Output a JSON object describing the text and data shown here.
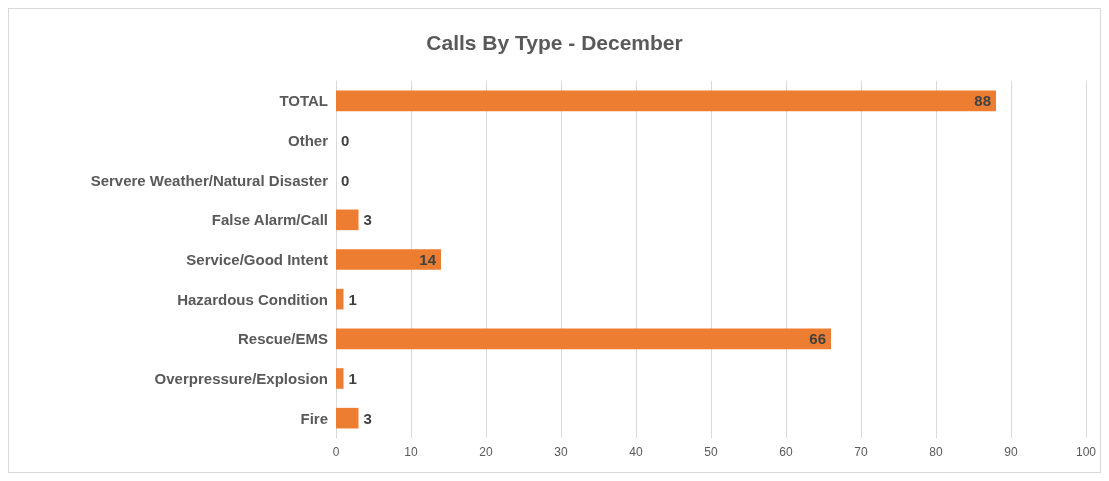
{
  "chart_data": {
    "type": "bar",
    "orientation": "horizontal",
    "title": "Calls By Type - December",
    "categories": [
      "TOTAL",
      "Other",
      "Servere Weather/Natural Disaster",
      "False Alarm/Call",
      "Service/Good Intent",
      "Hazardous Condition",
      "Rescue/EMS",
      "Overpressure/Explosion",
      "Fire"
    ],
    "values": [
      88,
      0,
      0,
      3,
      14,
      1,
      66,
      1,
      3
    ],
    "color": "#ed7d31",
    "xlim": [
      0,
      100
    ],
    "xticks": [
      0,
      10,
      20,
      30,
      40,
      50,
      60,
      70,
      80,
      90,
      100
    ],
    "grid": "x",
    "data_labels": true
  }
}
